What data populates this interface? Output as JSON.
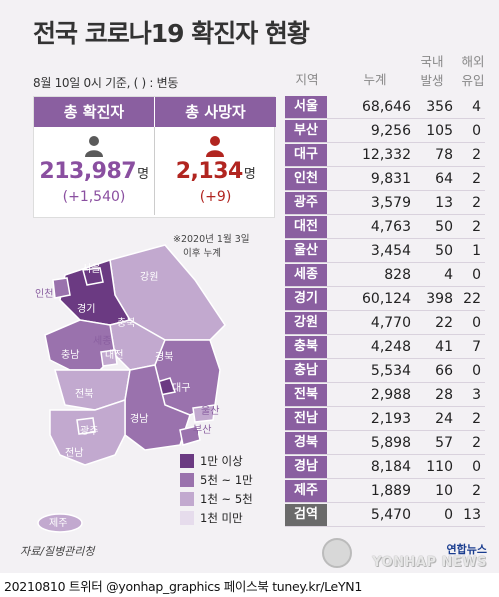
{
  "title": "전국 코로나19 확진자 현황",
  "date_note": "8월 10일 0시 기준, ( ) : 변동",
  "summary": {
    "confirmed_label": "총 확진자",
    "confirmed_value": "213,987",
    "confirmed_unit": "명",
    "confirmed_delta": "(+1,540)",
    "deaths_label": "총 사망자",
    "deaths_value": "2,134",
    "deaths_unit": "명",
    "deaths_delta": "(+9)"
  },
  "footnote": [
    "※2020년 1월 3일",
    "이후 누계"
  ],
  "table": {
    "headers": {
      "region": "지역",
      "cumulative": "누계",
      "local": [
        "국내",
        "발생"
      ],
      "imported": [
        "해외",
        "유입"
      ]
    },
    "rows": [
      {
        "region": "서울",
        "cumulative": "68,646",
        "local": "356",
        "imported": "4"
      },
      {
        "region": "부산",
        "cumulative": "9,256",
        "local": "105",
        "imported": "0"
      },
      {
        "region": "대구",
        "cumulative": "12,332",
        "local": "78",
        "imported": "2"
      },
      {
        "region": "인천",
        "cumulative": "9,831",
        "local": "64",
        "imported": "2"
      },
      {
        "region": "광주",
        "cumulative": "3,579",
        "local": "13",
        "imported": "2"
      },
      {
        "region": "대전",
        "cumulative": "4,763",
        "local": "50",
        "imported": "2"
      },
      {
        "region": "울산",
        "cumulative": "3,454",
        "local": "50",
        "imported": "1"
      },
      {
        "region": "세종",
        "cumulative": "828",
        "local": "4",
        "imported": "0"
      },
      {
        "region": "경기",
        "cumulative": "60,124",
        "local": "398",
        "imported": "22"
      },
      {
        "region": "강원",
        "cumulative": "4,770",
        "local": "22",
        "imported": "0"
      },
      {
        "region": "충북",
        "cumulative": "4,248",
        "local": "41",
        "imported": "7"
      },
      {
        "region": "충남",
        "cumulative": "5,534",
        "local": "66",
        "imported": "0"
      },
      {
        "region": "전북",
        "cumulative": "2,988",
        "local": "28",
        "imported": "3"
      },
      {
        "region": "전남",
        "cumulative": "2,193",
        "local": "24",
        "imported": "2"
      },
      {
        "region": "경북",
        "cumulative": "5,898",
        "local": "57",
        "imported": "2"
      },
      {
        "region": "경남",
        "cumulative": "8,184",
        "local": "110",
        "imported": "0"
      },
      {
        "region": "제주",
        "cumulative": "1,889",
        "local": "10",
        "imported": "2"
      },
      {
        "region": "검역",
        "cumulative": "5,470",
        "local": "0",
        "imported": "13",
        "total": true
      }
    ]
  },
  "map": {
    "labels": [
      "서울",
      "인천",
      "경기",
      "강원",
      "충북",
      "세종",
      "충남",
      "대전",
      "경북",
      "대구",
      "전북",
      "울산",
      "경남",
      "부산",
      "광주",
      "전남",
      "제주"
    ]
  },
  "legend": [
    {
      "label": "1만 이상",
      "color": "#6b3a82"
    },
    {
      "label": "5천 ~ 1만",
      "color": "#9a72ad"
    },
    {
      "label": "1천 ~ 5천",
      "color": "#c2a9cf"
    },
    {
      "label": "1천 미만",
      "color": "#e6dcec"
    }
  ],
  "source": "자료/질병관리청",
  "logo": {
    "korean": "연합뉴스",
    "english": "YONHAP NEWS"
  },
  "credit": "20210810 트위터 @yonhap_graphics  페이스북 tuney.kr/LeYN1"
}
